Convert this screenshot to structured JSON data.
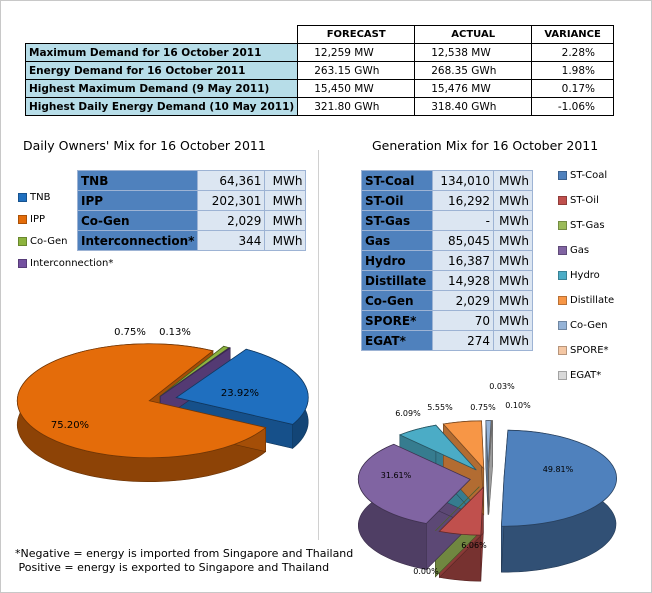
{
  "demand_table": {
    "headers": [
      "FORECAST",
      "ACTUAL",
      "VARIANCE"
    ],
    "rows": [
      {
        "label": "Maximum Demand for 16 October 2011",
        "forecast": "12,259  MW",
        "actual": "12,538  MW",
        "variance": "2.28%"
      },
      {
        "label": "Energy Demand for 16 October 2011",
        "forecast": "263.15  GWh",
        "actual": "268.35  GWh",
        "variance": "1.98%"
      },
      {
        "label": "Highest Maximum Demand (9 May 2011)",
        "forecast": "15,450  MW",
        "actual": "15,476  MW",
        "variance": "0.17%"
      },
      {
        "label": "Highest Daily Energy Demand (10 May 2011)",
        "forecast": "321.80  GWh",
        "actual": "318.40  GWh",
        "variance": "-1.06%"
      }
    ]
  },
  "owners_mix": {
    "title": "Daily Owners' Mix for 16 October 2011",
    "legend": [
      "TNB",
      "IPP",
      "Co-Gen",
      "Interconnection*"
    ],
    "rows": [
      {
        "name": "TNB",
        "value": "64,361",
        "unit": "MWh"
      },
      {
        "name": "IPP",
        "value": "202,301",
        "unit": "MWh"
      },
      {
        "name": "Co-Gen",
        "value": "2,029",
        "unit": "MWh"
      },
      {
        "name": "Interconnection*",
        "value": "344",
        "unit": "MWh"
      }
    ]
  },
  "generation_mix": {
    "title": "Generation Mix for 16 October 2011",
    "legend": [
      "ST-Coal",
      "ST-Oil",
      "ST-Gas",
      "Gas",
      "Hydro",
      "Distillate",
      "Co-Gen",
      "SPORE*",
      "EGAT*"
    ],
    "rows": [
      {
        "name": "ST-Coal",
        "value": "134,010",
        "unit": "MWh"
      },
      {
        "name": "ST-Oil",
        "value": "16,292",
        "unit": "MWh"
      },
      {
        "name": "ST-Gas",
        "value": "-",
        "unit": "MWh"
      },
      {
        "name": "Gas",
        "value": "85,045",
        "unit": "MWh"
      },
      {
        "name": "Hydro",
        "value": "16,387",
        "unit": "MWh"
      },
      {
        "name": "Distillate",
        "value": "14,928",
        "unit": "MWh"
      },
      {
        "name": "Co-Gen",
        "value": "2,029",
        "unit": "MWh"
      },
      {
        "name": "SPORE*",
        "value": "70",
        "unit": "MWh"
      },
      {
        "name": "EGAT*",
        "value": "274",
        "unit": "MWh"
      }
    ]
  },
  "note": {
    "line1": "*Negative = energy is imported from Singapore and Thailand",
    "line2": " Positive = energy is exported to Singapore and Thailand"
  },
  "chart_data": [
    {
      "type": "pie",
      "title": "Daily Owners' Mix for 16 October 2011",
      "legend_position": "left",
      "slices": [
        {
          "name": "TNB",
          "value": 23.92,
          "label": "23.92%",
          "color": "#1f6fbf"
        },
        {
          "name": "IPP",
          "value": 75.2,
          "label": "75.20%",
          "color": "#e46c0a"
        },
        {
          "name": "Co-Gen",
          "value": 0.75,
          "label": "0.75%",
          "color": "#8db43e"
        },
        {
          "name": "Interconnection*",
          "value": 0.13,
          "label": "0.13%",
          "color": "#7451a0"
        }
      ]
    },
    {
      "type": "pie",
      "title": "Generation Mix for 16 October 2011",
      "legend_position": "top-right",
      "slices": [
        {
          "name": "ST-Coal",
          "value": 49.81,
          "label": "49.81%",
          "color": "#4f81bd"
        },
        {
          "name": "ST-Oil",
          "value": 6.06,
          "label": "6.06%",
          "color": "#c0504d"
        },
        {
          "name": "ST-Gas",
          "value": 0.0,
          "label": "0.00%",
          "color": "#9bbb59"
        },
        {
          "name": "Gas",
          "value": 31.61,
          "label": "31.61%",
          "color": "#8064a2"
        },
        {
          "name": "Hydro",
          "value": 6.09,
          "label": "6.09%",
          "color": "#4bacc6"
        },
        {
          "name": "Distillate",
          "value": 5.55,
          "label": "5.55%",
          "color": "#f79646"
        },
        {
          "name": "Co-Gen",
          "value": 0.75,
          "label": "0.75%",
          "color": "#95b3d7"
        },
        {
          "name": "SPORE*",
          "value": 0.03,
          "label": "0.03%",
          "color": "#f4c7a4"
        },
        {
          "name": "EGAT*",
          "value": 0.1,
          "label": "0.10%",
          "color": "#d9d9d9"
        }
      ]
    }
  ]
}
